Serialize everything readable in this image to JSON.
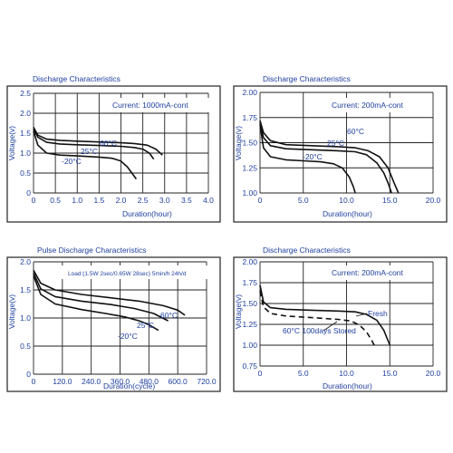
{
  "chart_data": [
    {
      "type": "line",
      "title": "Discharge Characteristics",
      "xlabel": "Duration(hour)",
      "ylabel": "Voltage(v)",
      "xlim": [
        0,
        4.0
      ],
      "ylim": [
        0,
        2.5
      ],
      "xticks": [
        "0",
        "0.5",
        "1.0",
        "1.5",
        "2.0",
        "2.5",
        "3.0",
        "3.5",
        "4.0"
      ],
      "yticks": [
        "0",
        "0.5",
        "1.0",
        "1.5",
        "2.0",
        "2.5"
      ],
      "grid": true,
      "annotation": "Current: 1000mA-cont",
      "series": [
        {
          "name": "60°C",
          "x": [
            0,
            0.1,
            0.3,
            0.6,
            1.0,
            1.5,
            2.0,
            2.3,
            2.6,
            2.8,
            2.95
          ],
          "y": [
            1.65,
            1.45,
            1.35,
            1.32,
            1.3,
            1.28,
            1.26,
            1.24,
            1.2,
            1.1,
            0.95
          ]
        },
        {
          "name": "25°C",
          "x": [
            0,
            0.1,
            0.3,
            0.6,
            1.0,
            1.5,
            2.0,
            2.3,
            2.5,
            2.65,
            2.75
          ],
          "y": [
            1.6,
            1.4,
            1.27,
            1.23,
            1.21,
            1.19,
            1.17,
            1.14,
            1.1,
            1.0,
            0.85
          ]
        },
        {
          "name": "-20°C",
          "x": [
            0,
            0.1,
            0.3,
            0.6,
            1.0,
            1.5,
            1.8,
            2.0,
            2.15,
            2.25,
            2.35
          ],
          "y": [
            1.55,
            1.2,
            1.0,
            0.95,
            0.93,
            0.9,
            0.87,
            0.8,
            0.65,
            0.5,
            0.35
          ]
        }
      ]
    },
    {
      "type": "line",
      "title": "Discharge Characteristics",
      "xlabel": "Duration(hour)",
      "ylabel": "Voltage(v)",
      "xlim": [
        0,
        20.0
      ],
      "ylim": [
        1.0,
        2.0
      ],
      "xticks": [
        "0",
        "5.0",
        "10.0",
        "15.0",
        "20.0"
      ],
      "yticks": [
        "1.00",
        "1.25",
        "1.50",
        "1.75",
        "2.00"
      ],
      "grid": true,
      "annotation": "Current: 200mA-cont",
      "series": [
        {
          "name": "60°C",
          "x": [
            0,
            0.4,
            1.2,
            3,
            6,
            9,
            11,
            12.5,
            13.8,
            14.8,
            15.5,
            16.0
          ],
          "y": [
            1.72,
            1.6,
            1.52,
            1.48,
            1.47,
            1.46,
            1.45,
            1.42,
            1.36,
            1.25,
            1.1,
            1.0
          ]
        },
        {
          "name": "25°C",
          "x": [
            0,
            0.4,
            1.2,
            3,
            6,
            9,
            11,
            12.3,
            13.5,
            14.3,
            14.8,
            15.2
          ],
          "y": [
            1.7,
            1.55,
            1.47,
            1.44,
            1.43,
            1.42,
            1.41,
            1.38,
            1.3,
            1.2,
            1.1,
            1.0
          ]
        },
        {
          "name": "-20°C",
          "x": [
            0,
            0.4,
            1.2,
            3,
            5,
            7,
            8.5,
            9.5,
            10.3,
            10.8,
            11.0
          ],
          "y": [
            1.68,
            1.45,
            1.36,
            1.33,
            1.32,
            1.31,
            1.29,
            1.25,
            1.16,
            1.06,
            1.0
          ]
        }
      ]
    },
    {
      "type": "line",
      "title": "Pulse Discharge Characteristics",
      "xlabel": "Duration(cycle)",
      "ylabel": "Voltage(v)",
      "xlim": [
        0,
        720.0
      ],
      "ylim": [
        0,
        2.0
      ],
      "xticks": [
        "0",
        "120.0",
        "240.0",
        "360.0",
        "480.0",
        "600.0",
        "720.0"
      ],
      "yticks": [
        "0",
        "0.5",
        "1.0",
        "1.5",
        "2.0"
      ],
      "grid": true,
      "annotation": "Load:(1.5W 2sec/0.65W 28sec) 5min/h 24h/d",
      "series": [
        {
          "name": "60°C",
          "x": [
            0,
            30,
            90,
            200,
            320,
            440,
            540,
            600,
            630
          ],
          "y": [
            1.85,
            1.62,
            1.5,
            1.42,
            1.36,
            1.3,
            1.22,
            1.14,
            1.05
          ]
        },
        {
          "name": "25°C",
          "x": [
            0,
            30,
            90,
            200,
            320,
            420,
            500,
            560
          ],
          "y": [
            1.8,
            1.52,
            1.38,
            1.3,
            1.24,
            1.17,
            1.08,
            0.95
          ]
        },
        {
          "name": "-20°C",
          "x": [
            0,
            30,
            90,
            200,
            300,
            380,
            440,
            480,
            520
          ],
          "y": [
            1.75,
            1.42,
            1.25,
            1.15,
            1.08,
            1.02,
            0.95,
            0.88,
            0.78
          ]
        }
      ]
    },
    {
      "type": "line",
      "title": "Discharge Characteristics",
      "xlabel": "Duration(hour)",
      "ylabel": "Voltage(v)",
      "xlim": [
        0,
        20.0
      ],
      "ylim": [
        0.75,
        2.0
      ],
      "xticks": [
        "0",
        "5.0",
        "10.0",
        "15.0",
        "20.0"
      ],
      "yticks": [
        "0.75",
        "1.00",
        "1.25",
        "1.50",
        "1.75",
        "2.00"
      ],
      "grid": true,
      "annotation": "Current: 200mA-cont",
      "series": [
        {
          "name": "Fresh",
          "x": [
            0,
            0.4,
            1.2,
            3,
            6,
            9,
            11,
            12.3,
            13.5,
            14.3,
            15.0
          ],
          "y": [
            1.72,
            1.52,
            1.45,
            1.43,
            1.42,
            1.41,
            1.4,
            1.37,
            1.3,
            1.18,
            1.0
          ]
        },
        {
          "name": "60°C 100days Stored",
          "x": [
            0,
            0.4,
            1.2,
            3,
            6,
            9,
            10.5,
            11.5,
            12.3,
            12.9,
            13.3
          ],
          "y": [
            1.65,
            1.46,
            1.38,
            1.35,
            1.33,
            1.31,
            1.29,
            1.24,
            1.16,
            1.06,
            0.98
          ]
        }
      ]
    }
  ]
}
